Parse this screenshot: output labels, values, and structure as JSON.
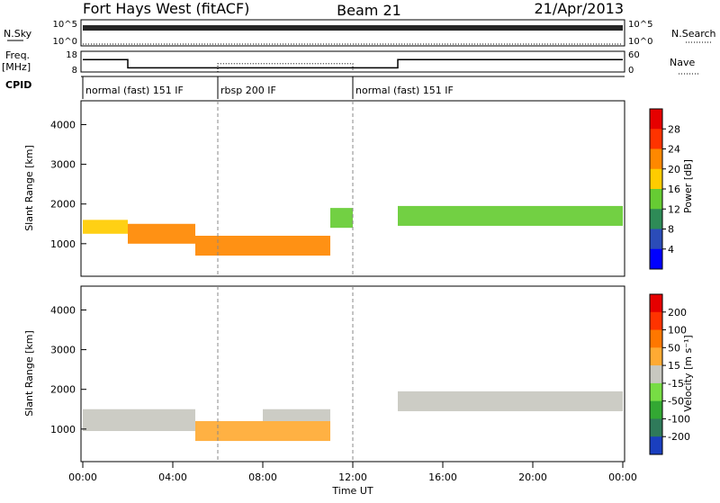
{
  "header": {
    "station": "Fort Hays West (fitACF)",
    "beam": "Beam 21",
    "date": "21/Apr/2013"
  },
  "top_panels": {
    "nsky_label": "N.Sky",
    "nsky_scale_top": "10^5",
    "nsky_scale_bottom": "10^0",
    "nsearch_label": "N.Search",
    "nsearch_scale_top": "10^5",
    "nsearch_scale_bottom": "10^0",
    "freq_label": "Freq.",
    "freq_unit": "[MHz]",
    "freq_ticks": [
      "18",
      "8"
    ],
    "nave_label": "Nave",
    "nave_ticks": [
      "60",
      "0"
    ],
    "cpid_label": "CPID",
    "cpid_segments": [
      {
        "label": "normal (fast) 151 IF",
        "start_hour": 0,
        "end_hour": 6
      },
      {
        "label": "rbsp 200 IF",
        "start_hour": 6,
        "end_hour": 12
      },
      {
        "label": "normal (fast) 151 IF",
        "start_hour": 12,
        "end_hour": 24
      }
    ]
  },
  "power_panel": {
    "ylabel": "Slant Range [km]",
    "yticks": [
      "4000",
      "3000",
      "2000",
      "1000"
    ],
    "colorbar_label": "Power [dB]",
    "colorbar_ticks": [
      "28",
      "24",
      "20",
      "16",
      "12",
      "8",
      "4"
    ],
    "colors": [
      "#0000ff",
      "#2b4cb8",
      "#2e8b57",
      "#66cc33",
      "#ffcc00",
      "#ff8800",
      "#ff3300",
      "#e60000"
    ]
  },
  "velocity_panel": {
    "ylabel": "Slant Range [km]",
    "yticks": [
      "4000",
      "3000",
      "2000",
      "1000"
    ],
    "colorbar_label": "Velocity [m s⁻¹]",
    "colorbar_ticks": [
      "200",
      "100",
      "50",
      "15",
      "-15",
      "-50",
      "-100",
      "-200"
    ],
    "colors": [
      "#1a3fbf",
      "#2f7a5a",
      "#33a833",
      "#77dd44",
      "#c8c8c0",
      "#ffaa33",
      "#ff7700",
      "#ff3300",
      "#e60000"
    ]
  },
  "xaxis": {
    "label": "Time UT",
    "ticks": [
      "00:00",
      "04:00",
      "08:00",
      "12:00",
      "16:00",
      "20:00",
      "00:00"
    ]
  },
  "chart_data": [
    {
      "type": "line",
      "title": "",
      "series": [
        {
          "name": "N.Sky",
          "x": [
            0,
            6,
            12,
            18,
            24
          ],
          "y": [
            100000,
            100000,
            100000,
            100000,
            100000
          ]
        },
        {
          "name": "N.Search",
          "x": [
            0,
            6,
            12,
            18,
            24
          ],
          "y": [
            1,
            1,
            1,
            1,
            1
          ]
        }
      ],
      "xlim": [
        0,
        24
      ],
      "yscale": "log"
    },
    {
      "type": "line",
      "series": [
        {
          "name": "Freq.",
          "x": [
            0,
            2,
            2,
            14,
            14,
            24
          ],
          "y": [
            14,
            14,
            10,
            10,
            14,
            14
          ]
        },
        {
          "name": "Nave",
          "x": [
            0,
            6,
            6,
            12,
            12,
            24
          ],
          "y": [
            8,
            8,
            12,
            12,
            8,
            8
          ]
        }
      ],
      "xlim": [
        0,
        24
      ],
      "ylim": [
        8,
        18
      ]
    },
    {
      "type": "heatmap",
      "xlabel": "Time UT",
      "ylabel": "Slant Range [km]",
      "colorbar": "Power [dB]",
      "xlim": [
        0,
        24
      ],
      "ylim": [
        180,
        4600
      ],
      "clim": [
        0,
        32
      ],
      "bands": [
        {
          "x": [
            0,
            2
          ],
          "range": [
            1250,
            1600
          ],
          "value": 18
        },
        {
          "x": [
            2,
            5
          ],
          "range": [
            1000,
            1500
          ],
          "value": 20
        },
        {
          "x": [
            5,
            11
          ],
          "range": [
            700,
            1200
          ],
          "value": 22
        },
        {
          "x": [
            11,
            12
          ],
          "range": [
            1400,
            1900
          ],
          "value": 12
        },
        {
          "x": [
            14,
            24
          ],
          "range": [
            1450,
            1950
          ],
          "value": 14
        }
      ]
    },
    {
      "type": "heatmap",
      "xlabel": "Time UT",
      "ylabel": "Slant Range [km]",
      "colorbar": "Velocity [m s-1]",
      "xlim": [
        0,
        24
      ],
      "ylim": [
        180,
        4600
      ],
      "clim": [
        -250,
        250
      ],
      "bands": [
        {
          "x": [
            0,
            5
          ],
          "range": [
            950,
            1500
          ],
          "value": 0
        },
        {
          "x": [
            5,
            11
          ],
          "range": [
            700,
            1200
          ],
          "value": 30
        },
        {
          "x": [
            8,
            11
          ],
          "range": [
            1200,
            1500
          ],
          "value": -20
        },
        {
          "x": [
            14,
            24
          ],
          "range": [
            1450,
            1950
          ],
          "value": 0
        }
      ]
    }
  ]
}
